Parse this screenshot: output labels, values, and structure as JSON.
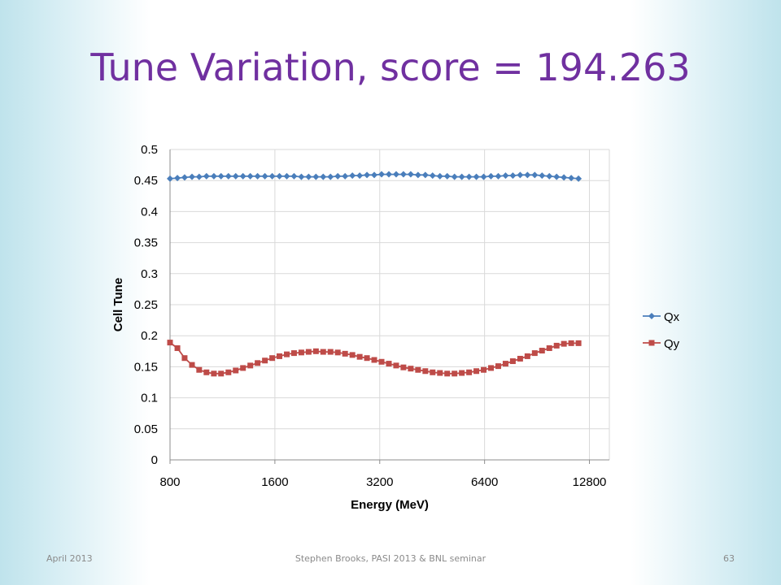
{
  "slide": {
    "title": "Tune Variation, score = 194.263",
    "footer_date": "April 2013",
    "footer_center": "Stephen Brooks, PASI 2013 & BNL seminar",
    "footer_page": "63"
  },
  "chart_data": {
    "type": "line",
    "title": "",
    "xlabel": "Energy (MeV)",
    "ylabel": "Cell Tune",
    "x_scale": "log2",
    "xlim": [
      800,
      14600
    ],
    "x_ticks": [
      "800",
      "1600",
      "3200",
      "6400",
      "12800"
    ],
    "ylim": [
      0,
      0.5
    ],
    "y_ticks": [
      "0",
      "0.05",
      "0.1",
      "0.15",
      "0.2",
      "0.25",
      "0.3",
      "0.35",
      "0.4",
      "0.45",
      "0.5"
    ],
    "grid": true,
    "legend_position": "right",
    "x": [
      800,
      840,
      881,
      925,
      970,
      1018,
      1069,
      1121,
      1177,
      1235,
      1296,
      1360,
      1427,
      1498,
      1572,
      1649,
      1731,
      1816,
      1906,
      2000,
      2099,
      2202,
      2311,
      2425,
      2545,
      2671,
      2803,
      2941,
      3086,
      3239,
      3399,
      3567,
      3743,
      3928,
      4122,
      4326,
      4539,
      4764,
      4999,
      5246,
      5505,
      5777,
      6062,
      6362,
      6676,
      7006,
      7352,
      7715,
      8097,
      8497,
      8917,
      9357,
      9819,
      10304,
      10813,
      11348,
      11908
    ],
    "series": [
      {
        "name": "Qx",
        "color": "#4a7ebb",
        "marker": "diamond",
        "values": [
          0.453,
          0.454,
          0.455,
          0.456,
          0.456,
          0.457,
          0.457,
          0.457,
          0.457,
          0.457,
          0.457,
          0.457,
          0.457,
          0.457,
          0.457,
          0.457,
          0.457,
          0.457,
          0.456,
          0.456,
          0.456,
          0.456,
          0.456,
          0.457,
          0.457,
          0.458,
          0.458,
          0.459,
          0.459,
          0.46,
          0.46,
          0.46,
          0.46,
          0.46,
          0.459,
          0.459,
          0.458,
          0.457,
          0.457,
          0.456,
          0.456,
          0.456,
          0.456,
          0.456,
          0.457,
          0.457,
          0.458,
          0.458,
          0.459,
          0.459,
          0.459,
          0.458,
          0.457,
          0.456,
          0.455,
          0.454,
          0.453
        ]
      },
      {
        "name": "Qy",
        "color": "#be4b48",
        "marker": "square",
        "values": [
          0.189,
          0.18,
          0.164,
          0.153,
          0.145,
          0.141,
          0.139,
          0.139,
          0.141,
          0.144,
          0.148,
          0.152,
          0.156,
          0.16,
          0.164,
          0.167,
          0.17,
          0.172,
          0.173,
          0.174,
          0.175,
          0.174,
          0.174,
          0.173,
          0.171,
          0.169,
          0.166,
          0.164,
          0.161,
          0.158,
          0.155,
          0.152,
          0.149,
          0.147,
          0.145,
          0.143,
          0.141,
          0.14,
          0.139,
          0.139,
          0.14,
          0.141,
          0.143,
          0.145,
          0.148,
          0.151,
          0.155,
          0.159,
          0.163,
          0.167,
          0.172,
          0.176,
          0.18,
          0.184,
          0.187,
          0.188,
          0.188
        ]
      }
    ]
  }
}
